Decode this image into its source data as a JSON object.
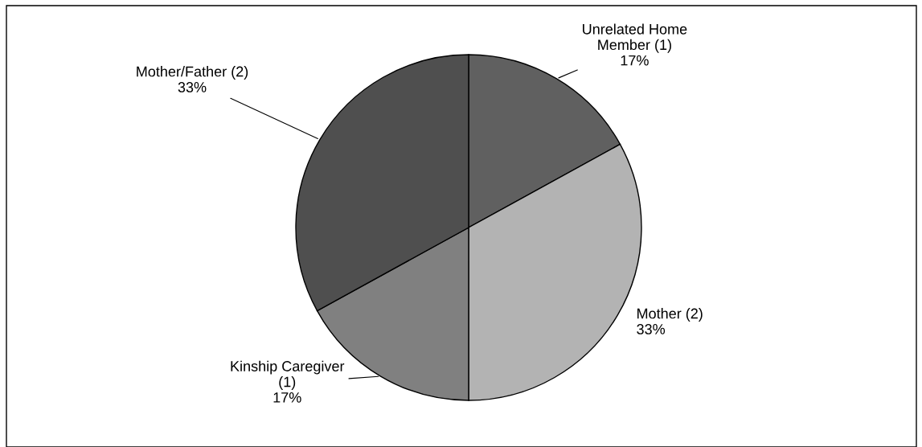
{
  "chart_data": {
    "type": "pie",
    "categories": [
      "Unrelated Home\nMember (1)",
      "Mother (2)",
      "Kinship Caregiver\n(1)",
      "Mother/Father (2)"
    ],
    "values": [
      17,
      33,
      17,
      33
    ],
    "colors": [
      "#606060",
      "#b3b3b3",
      "#808080",
      "#4f4f4f"
    ],
    "value_labels": [
      "17%",
      "33%",
      "17%",
      "33%"
    ],
    "legend": false
  }
}
